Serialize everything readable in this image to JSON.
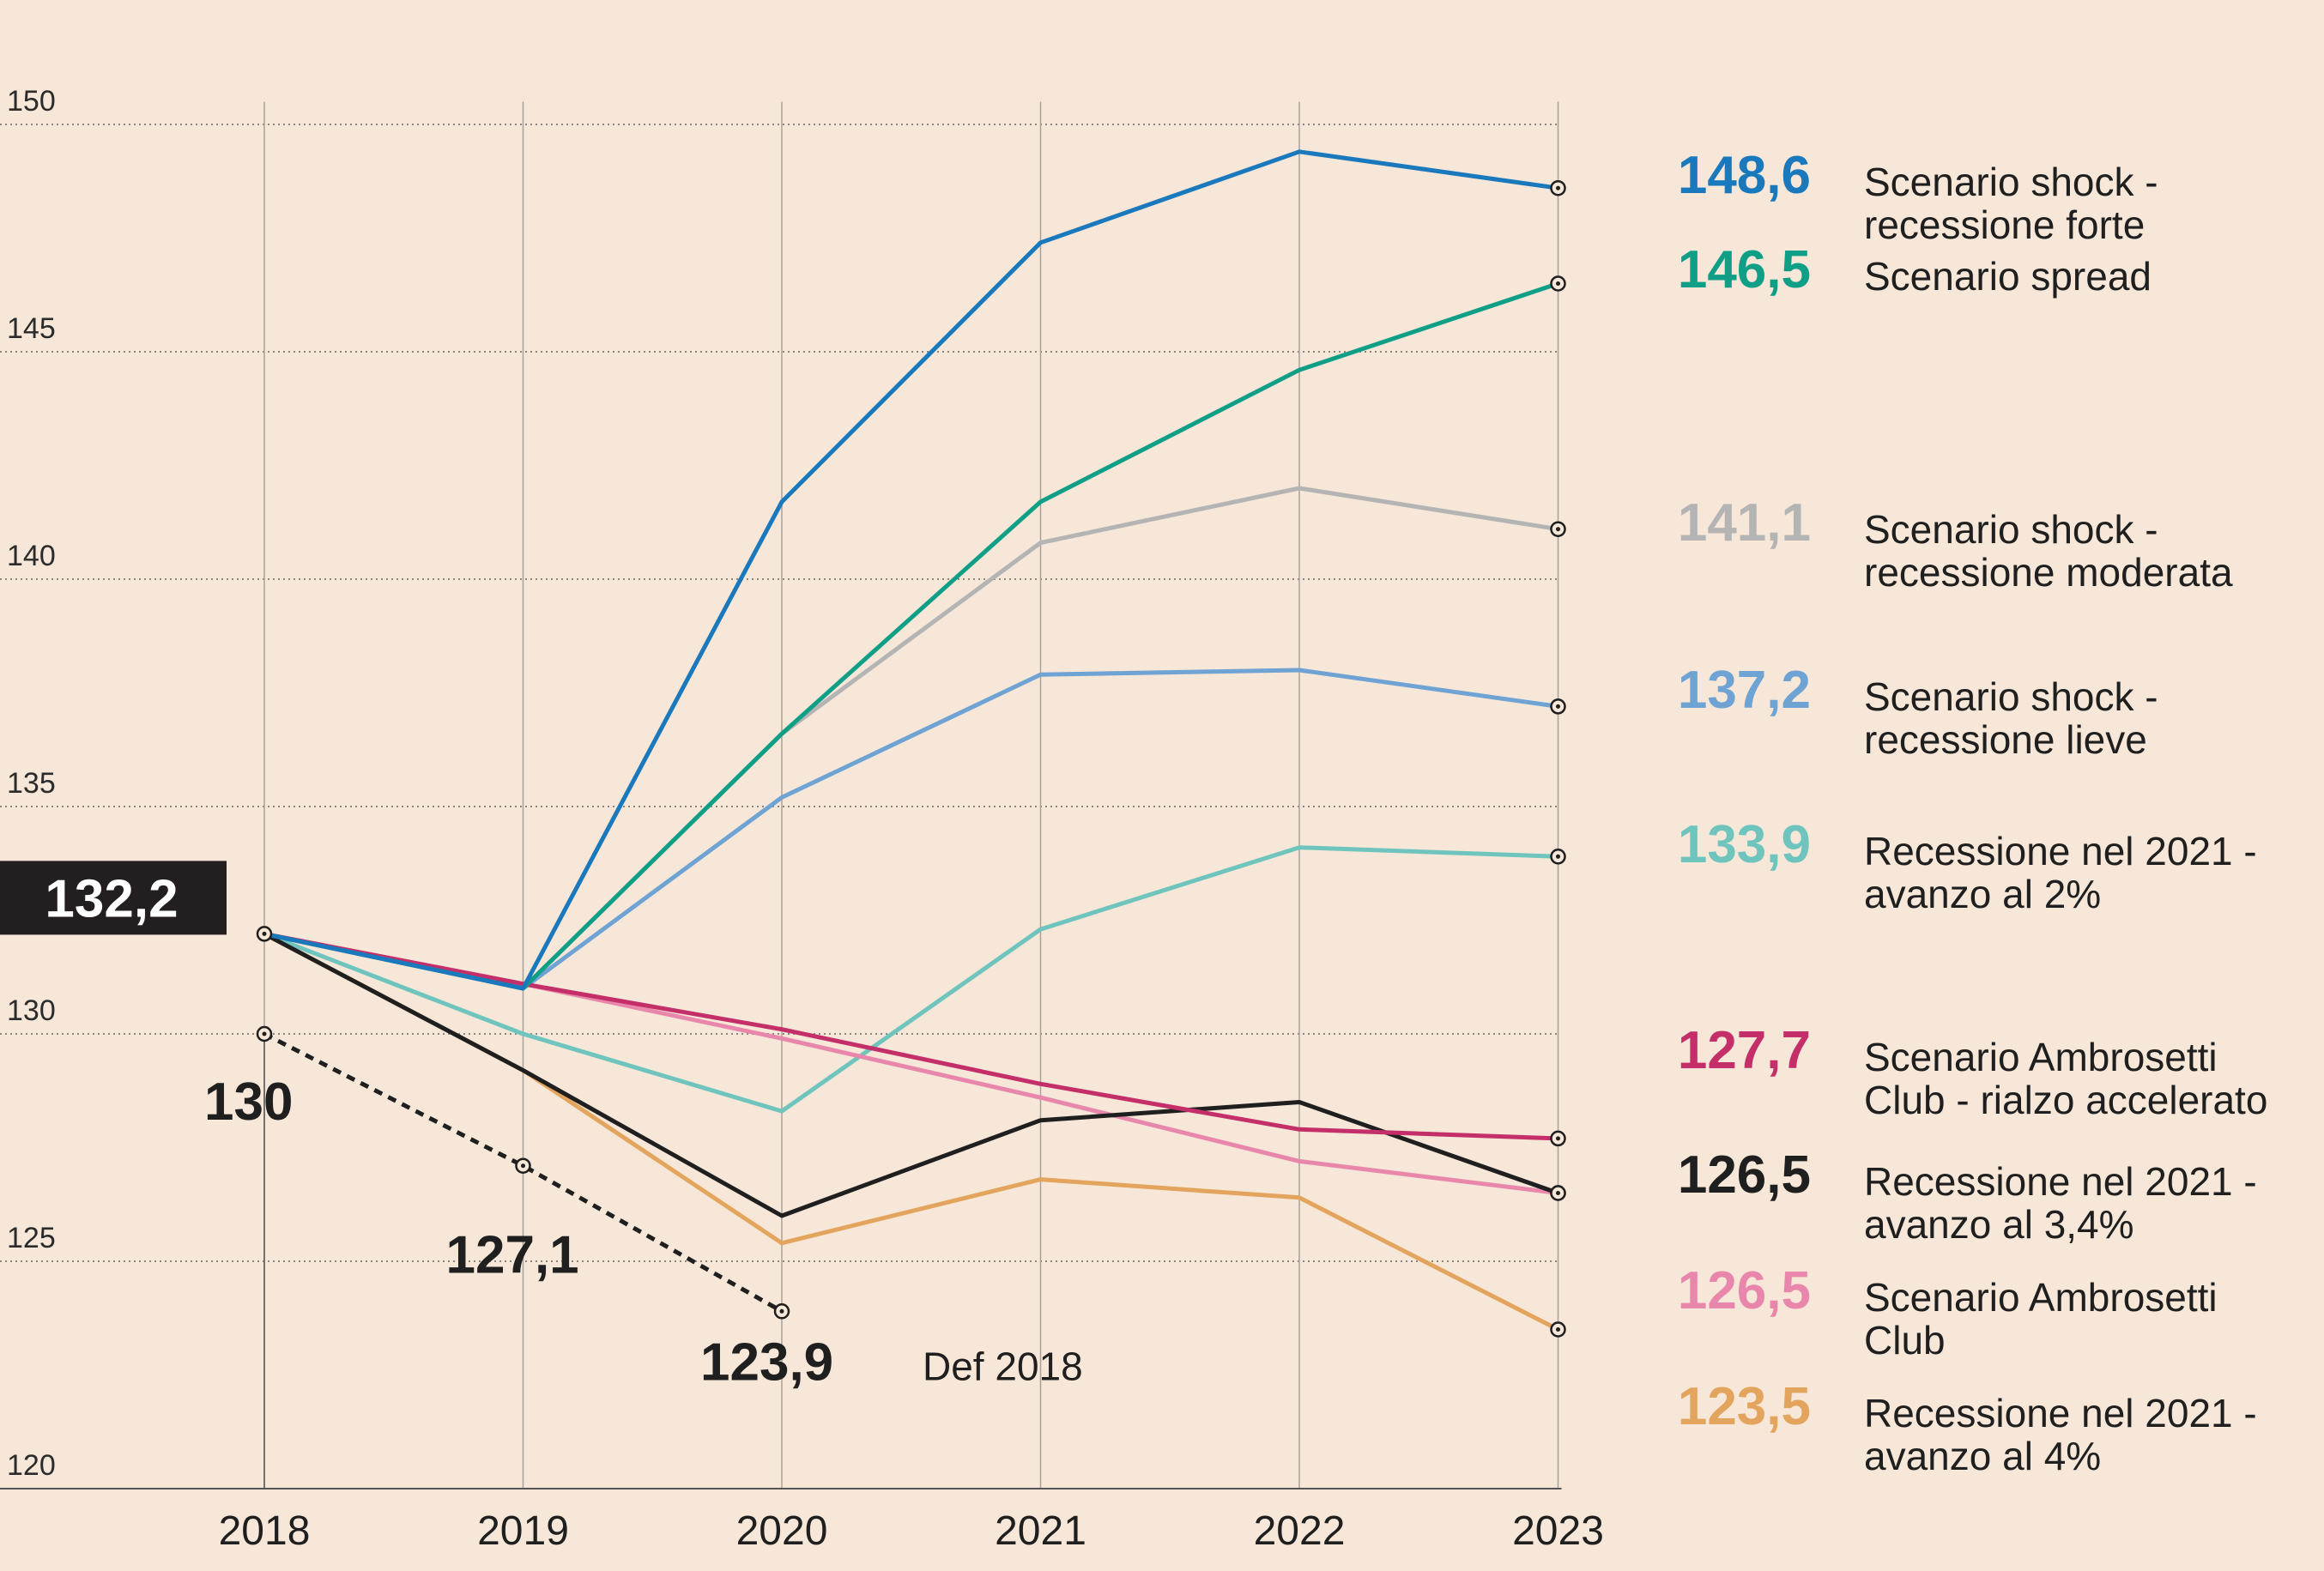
{
  "chart_data": {
    "type": "line",
    "x": [
      2018,
      2019,
      2020,
      2021,
      2022,
      2023
    ],
    "ylim": [
      120,
      152
    ],
    "yticks": [
      "150",
      "145",
      "140",
      "135",
      "130",
      "125",
      "120"
    ],
    "start_value": "132,2",
    "series": [
      {
        "name_lines": [
          "Scenario shock -",
          "recessione forte"
        ],
        "end_label": "148,6",
        "color": "#1a78bd",
        "values": [
          132.2,
          131.0,
          141.7,
          147.4,
          149.4,
          148.6
        ]
      },
      {
        "name_lines": [
          "Scenario spread"
        ],
        "end_label": "146,5",
        "color": "#0f9e86",
        "values": [
          132.2,
          131.0,
          136.6,
          141.7,
          144.6,
          146.5
        ]
      },
      {
        "name_lines": [
          "Scenario shock -",
          "recessione moderata"
        ],
        "end_label": "141,1",
        "color": "#b4b4b4",
        "values": [
          132.2,
          131.0,
          136.6,
          140.8,
          142.0,
          141.1
        ]
      },
      {
        "name_lines": [
          "Scenario shock -",
          "recessione lieve"
        ],
        "end_label": "137,2",
        "color": "#6ea3d4",
        "values": [
          132.2,
          131.0,
          135.2,
          137.9,
          138.0,
          137.2
        ]
      },
      {
        "name_lines": [
          "Recessione nel 2021 -",
          "avanzo al 2%"
        ],
        "end_label": "133,9",
        "color": "#6fc5bd",
        "values": [
          132.2,
          130.0,
          128.3,
          132.3,
          134.1,
          133.9
        ]
      },
      {
        "name_lines": [
          "Scenario Ambrosetti",
          "Club - rialzo accelerato"
        ],
        "end_label": "127,7",
        "color": "#c42f6a",
        "values": [
          132.2,
          131.1,
          130.1,
          128.9,
          127.9,
          127.7
        ]
      },
      {
        "name_lines": [
          "Recessione nel 2021 -",
          "avanzo al 3,4%"
        ],
        "end_label": "126,5",
        "color": "#1f1f1f",
        "values": [
          132.2,
          129.2,
          126.0,
          128.1,
          128.5,
          126.5
        ]
      },
      {
        "name_lines": [
          "Scenario Ambrosetti",
          "Club"
        ],
        "end_label": "126,5",
        "color": "#e887ab",
        "values": [
          132.2,
          131.1,
          129.9,
          128.6,
          127.2,
          126.5
        ]
      },
      {
        "name_lines": [
          "Recessione nel 2021 -",
          "avanzo al 4%"
        ],
        "end_label": "123,5",
        "color": "#e3a55e",
        "values": [
          132.2,
          129.2,
          125.4,
          126.8,
          126.4,
          123.5
        ]
      }
    ],
    "def2018": {
      "label": "Def 2018",
      "x": [
        2018,
        2019,
        2020
      ],
      "values": [
        130,
        127.1,
        123.9
      ],
      "point_labels": [
        "130",
        "127,1",
        "123,9"
      ]
    }
  }
}
